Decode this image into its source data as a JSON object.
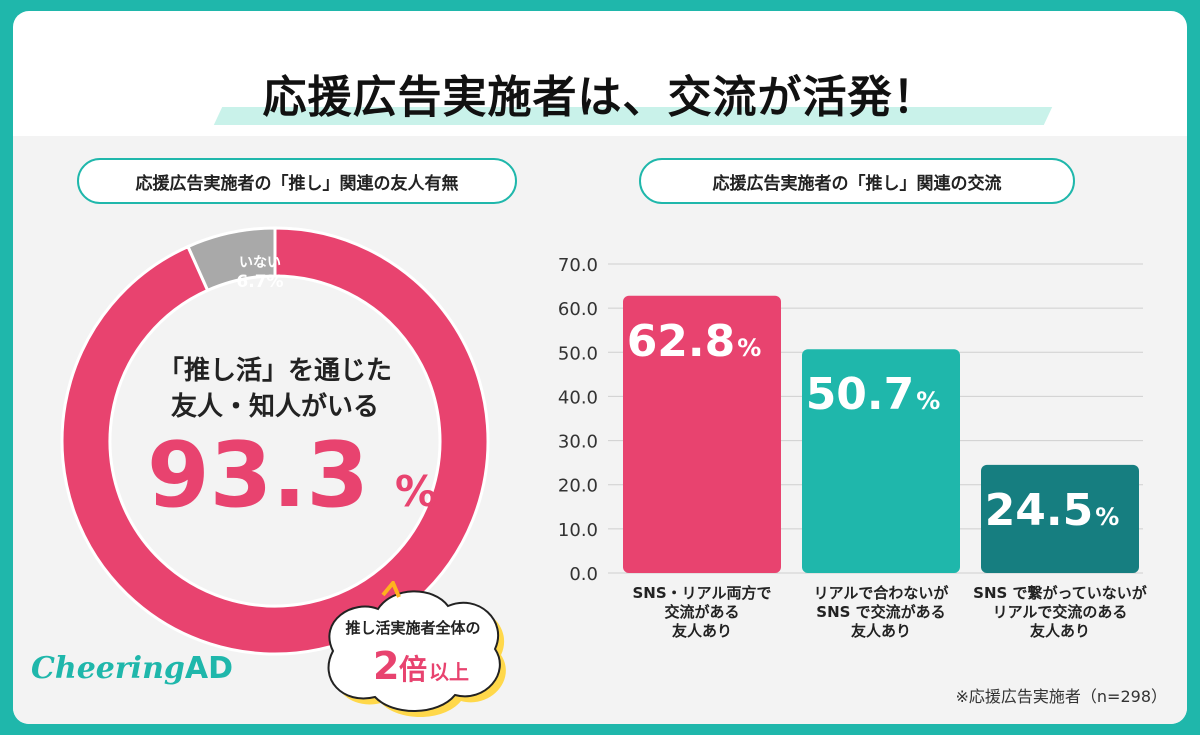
{
  "title": "応援広告実施者は、交流が活発！",
  "left_panel": {
    "pill_label": "応援広告実施者の「推し」関連の友人有無",
    "center_line1": "「推し活」を通じた",
    "center_line2": "友人・知人がいる",
    "center_value": "93.3",
    "center_unit": "%",
    "callout_line1": "推し活実施者全体の",
    "callout_number": "2",
    "callout_suffix": "倍",
    "callout_tail": "以上"
  },
  "right_panel": {
    "pill_label": "応援広告実施者の「推し」関連の交流"
  },
  "logo": {
    "brand": "Cheering",
    "suffix": "AD"
  },
  "footnote": "※応援広告実施者（n=298）",
  "colors": {
    "pink": "#e8436f",
    "teal": "#1fb7ab",
    "dark_teal": "#167e80",
    "gray": "#a9a9a9",
    "frame": "#1fb7ab"
  },
  "chart_data": [
    {
      "type": "pie",
      "title": "応援広告実施者の「推し」関連の友人有無",
      "slices": [
        {
          "label": "「推し活」を通じた友人・知人がいる",
          "value": 93.3,
          "color": "#e8436f"
        },
        {
          "label": "いない",
          "value": 6.7,
          "color": "#a9a9a9",
          "display_value": "6.7",
          "display_unit": "%"
        }
      ]
    },
    {
      "type": "bar",
      "title": "応援広告実施者の「推し」関連の交流",
      "ylim": [
        0,
        70
      ],
      "yticks": [
        "70.0",
        "60.0",
        "50.0",
        "40.0",
        "30.0",
        "20.0",
        "10.0",
        "0.0"
      ],
      "categories": [
        [
          "SNS・リアル両方で",
          "交流がある",
          "友人あり"
        ],
        [
          "リアルで合わないが",
          "SNS で交流がある",
          "友人あり"
        ],
        [
          "SNS で繋がっていないが",
          "リアルで交流のある",
          "友人あり"
        ]
      ],
      "values": [
        62.8,
        50.7,
        24.5
      ],
      "value_labels": [
        "62.8",
        "50.7",
        "24.5"
      ],
      "unit": "%",
      "colors": [
        "#e8436f",
        "#1fb7ab",
        "#167e80"
      ]
    }
  ]
}
